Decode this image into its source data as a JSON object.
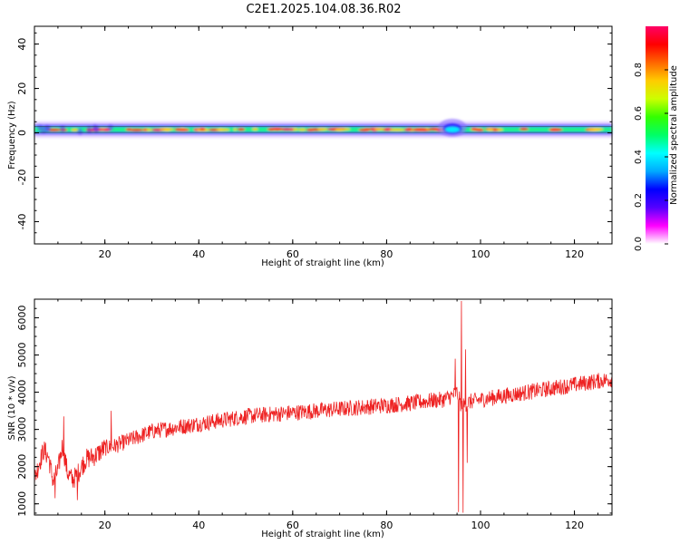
{
  "figure": {
    "title": "C2E1.2025.104.08.36.R02"
  },
  "chart_data": [
    {
      "type": "heatmap",
      "title": "C2E1.2025.104.08.36.R02",
      "xlabel": "Height of straight line (km)",
      "ylabel": "Frequency (Hz)",
      "xlim": [
        5,
        128
      ],
      "ylim": [
        -50,
        48
      ],
      "xticks": [
        20,
        40,
        60,
        80,
        100,
        120
      ],
      "yticks": [
        -40,
        -20,
        0,
        20,
        40
      ],
      "grid": false,
      "description_band": {
        "center_hz": 1.5,
        "half_width_hz": 2,
        "x_range_km": [
          5,
          128
        ],
        "disturbance_km": [
          91,
          97
        ]
      },
      "colorbar": {
        "label": "Normalized spectral amplitude",
        "range": [
          0.0,
          1.0
        ],
        "ticks": [
          0.0,
          0.2,
          0.4,
          0.6,
          0.8
        ],
        "colors": [
          "#ffffff",
          "#ff00ff",
          "#5500ff",
          "#0000ff",
          "#00aaff",
          "#00ffff",
          "#00ff66",
          "#33ff00",
          "#ccff00",
          "#ffcc00",
          "#ff6600",
          "#ff0000",
          "#ff0066"
        ]
      }
    },
    {
      "type": "line",
      "xlabel": "Height of straight line (km)",
      "ylabel": "SNR (10 * v/v)",
      "xlim": [
        5,
        128
      ],
      "ylim": [
        700,
        6500
      ],
      "xticks": [
        20,
        40,
        60,
        80,
        100,
        120
      ],
      "yticks": [
        1000,
        2000,
        3000,
        4000,
        5000,
        6000
      ],
      "grid": false,
      "line_color": "#ee2222",
      "trend": {
        "x": [
          5,
          6,
          7,
          8,
          9,
          10,
          11,
          12,
          13,
          14,
          15,
          16,
          18,
          20,
          22,
          24,
          26,
          28,
          30,
          35,
          40,
          45,
          50,
          55,
          60,
          65,
          70,
          75,
          80,
          85,
          88,
          90,
          92,
          93,
          94,
          95,
          96,
          97,
          98,
          100,
          105,
          110,
          115,
          120,
          125,
          128
        ],
        "y": [
          1650,
          2100,
          2450,
          2250,
          1600,
          1900,
          2600,
          1850,
          1650,
          1750,
          2000,
          2200,
          2300,
          2500,
          2550,
          2650,
          2750,
          2850,
          2950,
          3050,
          3150,
          3250,
          3350,
          3400,
          3450,
          3500,
          3550,
          3600,
          3650,
          3700,
          3750,
          3780,
          3800,
          3850,
          3900,
          4000,
          3600,
          3700,
          3750,
          3800,
          3900,
          4000,
          4100,
          4200,
          4300,
          4350
        ]
      },
      "noise_amplitude": 220,
      "spikes": [
        {
          "x": 11.2,
          "y": 3350
        },
        {
          "x": 21.3,
          "y": 3500
        },
        {
          "x": 9.4,
          "y": 1150
        },
        {
          "x": 14.1,
          "y": 1100
        },
        {
          "x": 94.6,
          "y": 4900
        },
        {
          "x": 95.3,
          "y": 780
        },
        {
          "x": 95.9,
          "y": 6450
        },
        {
          "x": 96.3,
          "y": 760
        },
        {
          "x": 96.8,
          "y": 5150
        },
        {
          "x": 97.2,
          "y": 2100
        }
      ]
    }
  ]
}
